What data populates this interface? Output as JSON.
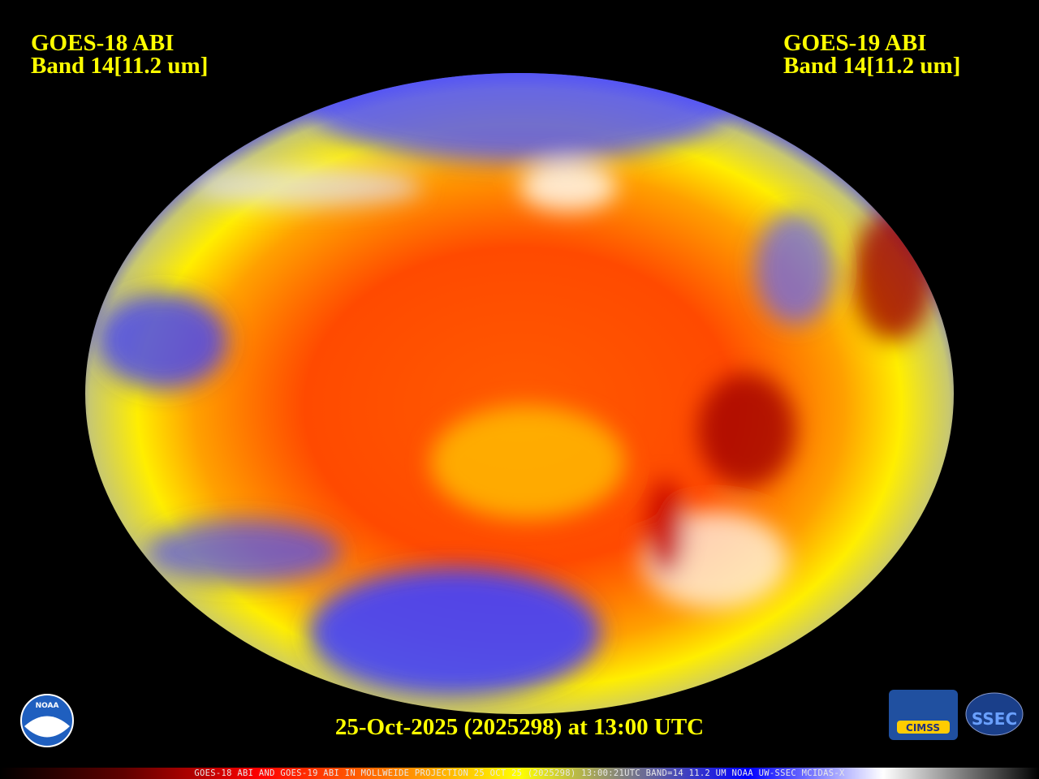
{
  "header": {
    "left": {
      "satellite": "GOES-18 ABI",
      "band": "Band 14[11.2 um]"
    },
    "right": {
      "satellite": "GOES-19 ABI",
      "band": "Band 14[11.2 um]"
    }
  },
  "timestamp": "25-Oct-2025 (2025298) at 13:00 UTC",
  "footer": "GOES-18 ABI AND GOES-19 ABI IN MOLLWEIDE PROJECTION 25 OCT 25 (2025298) 13:00:21UTC BAND=14 11.2 UM NOAA UW-SSEC MCIDAS-X",
  "logos": {
    "noaa": "NOAA",
    "cimss": "CIMSS",
    "ssec": "SSEC"
  }
}
